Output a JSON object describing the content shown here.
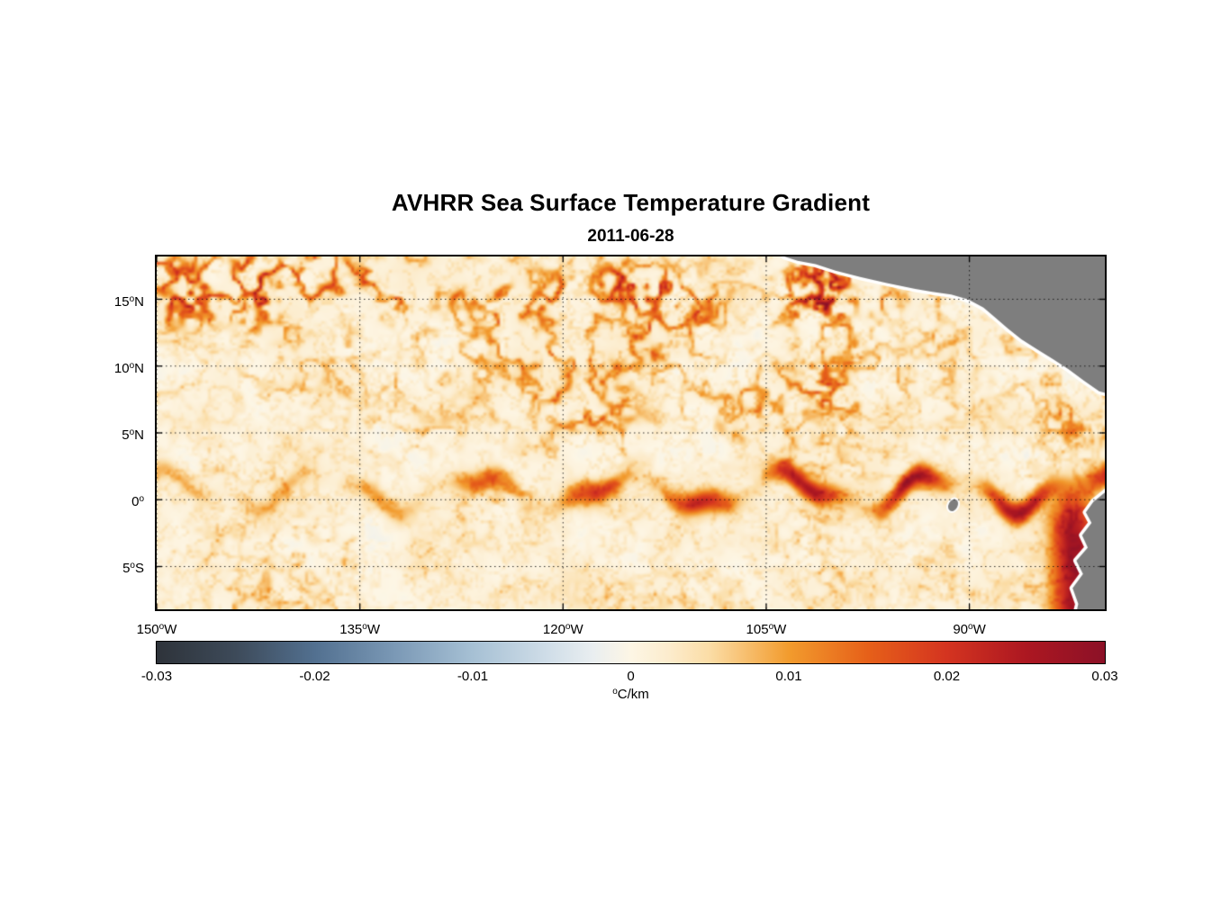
{
  "figure": {
    "title": "AVHRR Sea Surface Temperature Gradient",
    "subtitle": "2011-06-28"
  },
  "chart_data": {
    "type": "heatmap",
    "title": "AVHRR Sea Surface Temperature Gradient",
    "date": "2011-06-28",
    "variable": "sea surface temperature gradient magnitude",
    "units": "°C/km",
    "x_axis": {
      "range_deg_lon": [
        -150,
        -80
      ],
      "ticks": [
        {
          "num": "150",
          "sup": "o",
          "suffix": "W",
          "lon": -150
        },
        {
          "num": "135",
          "sup": "o",
          "suffix": "W",
          "lon": -135
        },
        {
          "num": "120",
          "sup": "o",
          "suffix": "W",
          "lon": -120
        },
        {
          "num": "105",
          "sup": "o",
          "suffix": "W",
          "lon": -105
        },
        {
          "num": "90",
          "sup": "o",
          "suffix": "W",
          "lon": -90
        }
      ]
    },
    "y_axis": {
      "range_deg_lat": [
        -8.2,
        18.2
      ],
      "ticks": [
        {
          "num": "15",
          "sup": "o",
          "suffix": "N",
          "lat": 15
        },
        {
          "num": "10",
          "sup": "o",
          "suffix": "N",
          "lat": 10
        },
        {
          "num": "5",
          "sup": "o",
          "suffix": "N",
          "lat": 5
        },
        {
          "num": "0",
          "sup": "o",
          "suffix": "",
          "lat": 0
        },
        {
          "num": "5",
          "sup": "o",
          "suffix": "S",
          "lat": -5
        }
      ]
    },
    "grid": {
      "style": "dotted",
      "on": true
    },
    "colorbar": {
      "min": -0.03,
      "max": 0.03,
      "orientation": "horizontal",
      "ticks": [
        "-0.03",
        "-0.02",
        "-0.01",
        "0",
        "0.01",
        "0.02",
        "0.03"
      ],
      "units_sup": "o",
      "units_main": "C/km",
      "stops": [
        {
          "pos": 0.0,
          "color": "#2e333a"
        },
        {
          "pos": 0.083,
          "color": "#3d4a59"
        },
        {
          "pos": 0.167,
          "color": "#527090"
        },
        {
          "pos": 0.25,
          "color": "#7a98b5"
        },
        {
          "pos": 0.333,
          "color": "#a6c0d4"
        },
        {
          "pos": 0.417,
          "color": "#d2dfe9"
        },
        {
          "pos": 0.46,
          "color": "#e9eef0"
        },
        {
          "pos": 0.5,
          "color": "#fdf6e5"
        },
        {
          "pos": 0.54,
          "color": "#fceccd"
        },
        {
          "pos": 0.583,
          "color": "#fbdda6"
        },
        {
          "pos": 0.667,
          "color": "#f29b2d"
        },
        {
          "pos": 0.75,
          "color": "#e66019"
        },
        {
          "pos": 0.833,
          "color": "#d43420"
        },
        {
          "pos": 0.917,
          "color": "#ac1721"
        },
        {
          "pos": 1.0,
          "color": "#8c1127"
        }
      ]
    },
    "land_color": "#7e7e7e",
    "coast_halo_color": "#ffffff",
    "features": [
      "Strong patchy gradient filaments along ~14-18N between 150W and 100W",
      "Wavy equatorial front (tropical instability waves) near 0-2N, intensifying eastward",
      "Very strong (dark red) gradients along the Ecuador/Peru coast near 80-83W",
      "Gray land: Mexico / Central America in upper right, South America in lower right, small Galapagos islands near 91W 0.5S",
      "Background ocean mostly weak gradients (cream, ~0 to 0.005 C/km) with faint bluish mottling"
    ]
  }
}
